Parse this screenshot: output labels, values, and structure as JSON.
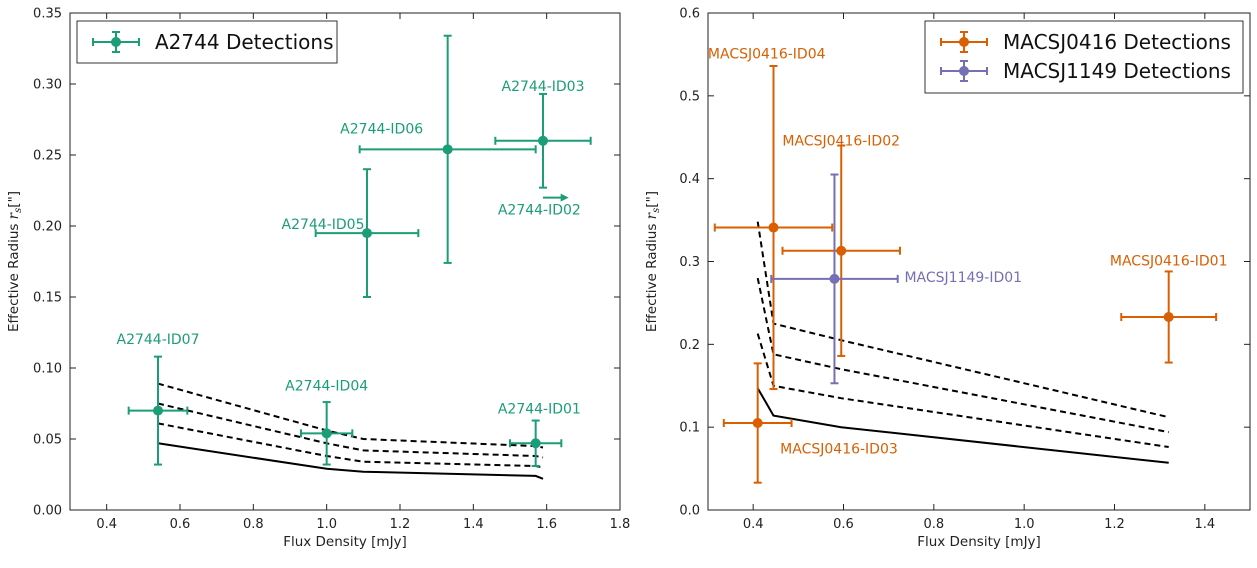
{
  "chart_data": [
    {
      "type": "scatter",
      "xlabel": "Flux Density [mJy]",
      "ylabel": "Effective Radius r_s [\"]",
      "ylabel_main": "Effective Radius ",
      "ylabel_var": "r",
      "ylabel_sub": "s",
      "ylabel_unit": "[\"]",
      "xlim": [
        0.3,
        1.8
      ],
      "ylim": [
        0.0,
        0.35
      ],
      "xticks": [
        0.4,
        0.6,
        0.8,
        1.0,
        1.2,
        1.4,
        1.6,
        1.8
      ],
      "yticks": [
        0.0,
        0.05,
        0.1,
        0.15,
        0.2,
        0.25,
        0.3,
        0.35
      ],
      "xtick_labels": [
        "0.4",
        "0.6",
        "0.8",
        "1.0",
        "1.2",
        "1.4",
        "1.6",
        "1.8"
      ],
      "ytick_labels": [
        "0.00",
        "0.05",
        "0.10",
        "0.15",
        "0.20",
        "0.25",
        "0.30",
        "0.35"
      ],
      "grid": false,
      "legend_position": "top-left",
      "series": [
        {
          "name": "A2744 Detections",
          "color": "#1b9e77",
          "points": [
            {
              "label": "A2744-ID07",
              "x": 0.54,
              "y": 0.07,
              "xerr": [
                0.08,
                0.08
              ],
              "yerr": [
                0.038,
                0.038
              ],
              "label_x": 0.54,
              "label_y": 0.117,
              "anchor": "middle"
            },
            {
              "label": "A2744-ID04",
              "x": 1.0,
              "y": 0.054,
              "xerr": [
                0.07,
                0.07
              ],
              "yerr": [
                0.022,
                0.022
              ],
              "label_x": 1.0,
              "label_y": 0.084,
              "anchor": "middle"
            },
            {
              "label": "A2744-ID05",
              "x": 1.11,
              "y": 0.195,
              "xerr": [
                0.14,
                0.14
              ],
              "yerr": [
                0.045,
                0.045
              ],
              "label_x": 0.99,
              "label_y": 0.198,
              "anchor": "middle"
            },
            {
              "label": "A2744-ID06",
              "x": 1.33,
              "y": 0.254,
              "xerr": [
                0.24,
                0.24
              ],
              "yerr": [
                0.08,
                0.08
              ],
              "label_x": 1.15,
              "label_y": 0.265,
              "anchor": "middle"
            },
            {
              "label": "A2744-ID03",
              "x": 1.59,
              "y": 0.26,
              "xerr": [
                0.13,
                0.13
              ],
              "yerr": [
                0.033,
                0.033
              ],
              "label_x": 1.59,
              "label_y": 0.295,
              "anchor": "middle"
            },
            {
              "label": "A2744-ID01",
              "x": 1.57,
              "y": 0.047,
              "xerr": [
                0.07,
                0.07
              ],
              "yerr": [
                0.016,
                0.016
              ],
              "label_x": 1.58,
              "label_y": 0.068,
              "anchor": "middle"
            }
          ],
          "arrows": [
            {
              "label": "A2744-ID02",
              "x": 1.59,
              "y": 0.22,
              "dx": 0.07,
              "label_x": 1.58,
              "label_y": 0.208,
              "anchor": "middle"
            }
          ]
        }
      ],
      "lines": [
        {
          "style": "solid",
          "x": [
            0.54,
            1.0,
            1.1,
            1.57,
            1.59
          ],
          "y": [
            0.047,
            0.029,
            0.027,
            0.024,
            0.022
          ]
        },
        {
          "style": "dashed",
          "x": [
            0.54,
            1.0,
            1.1,
            1.57,
            1.59
          ],
          "y": [
            0.061,
            0.038,
            0.034,
            0.031,
            0.03
          ]
        },
        {
          "style": "dashed",
          "x": [
            0.54,
            1.0,
            1.1,
            1.57,
            1.59
          ],
          "y": [
            0.075,
            0.047,
            0.042,
            0.038,
            0.037
          ]
        },
        {
          "style": "dashed",
          "x": [
            0.54,
            1.0,
            1.1,
            1.57,
            1.59
          ],
          "y": [
            0.089,
            0.056,
            0.05,
            0.045,
            0.044
          ]
        }
      ]
    },
    {
      "type": "scatter",
      "xlabel": "Flux Density [mJy]",
      "ylabel": "Effective Radius r_s [\"]",
      "ylabel_main": "Effective Radius ",
      "ylabel_var": "r",
      "ylabel_sub": "s",
      "ylabel_unit": "[\"]",
      "xlim": [
        0.3,
        1.5
      ],
      "ylim": [
        0.0,
        0.6
      ],
      "xticks": [
        0.4,
        0.6,
        0.8,
        1.0,
        1.2,
        1.4
      ],
      "yticks": [
        0.0,
        0.1,
        0.2,
        0.3,
        0.4,
        0.5,
        0.6
      ],
      "xtick_labels": [
        "0.4",
        "0.6",
        "0.8",
        "1.0",
        "1.2",
        "1.4"
      ],
      "ytick_labels": [
        "0.0",
        "0.1",
        "0.2",
        "0.3",
        "0.4",
        "0.5",
        "0.6"
      ],
      "grid": false,
      "legend_position": "top-right",
      "series": [
        {
          "name": "MACSJ0416 Detections",
          "color": "#d95f02",
          "points": [
            {
              "label": "MACSJ0416-ID04",
              "x": 0.445,
              "y": 0.341,
              "xerr": [
                0.13,
                0.13
              ],
              "yerr": [
                0.195,
                0.195
              ],
              "label_x": 0.43,
              "label_y": 0.545,
              "anchor": "middle"
            },
            {
              "label": "MACSJ0416-ID02",
              "x": 0.595,
              "y": 0.313,
              "xerr": [
                0.13,
                0.13
              ],
              "yerr": [
                0.127,
                0.127
              ],
              "label_x": 0.595,
              "label_y": 0.44,
              "anchor": "middle"
            },
            {
              "label": "MACSJ0416-ID03",
              "x": 0.41,
              "y": 0.105,
              "xerr": [
                0.075,
                0.075
              ],
              "yerr": [
                0.072,
                0.072
              ],
              "label_x": 0.59,
              "label_y": 0.068,
              "anchor": "middle"
            },
            {
              "label": "MACSJ0416-ID01",
              "x": 1.32,
              "y": 0.233,
              "xerr": [
                0.105,
                0.105
              ],
              "yerr": [
                0.055,
                0.055
              ],
              "label_x": 1.32,
              "label_y": 0.295,
              "anchor": "middle"
            }
          ]
        },
        {
          "name": "MACSJ1149 Detections",
          "color": "#7570b3",
          "points": [
            {
              "label": "MACSJ1149-ID01",
              "x": 0.58,
              "y": 0.279,
              "xerr": [
                0.14,
                0.14
              ],
              "yerr": [
                0.126,
                0.126
              ],
              "label_x": 0.735,
              "label_y": 0.275,
              "anchor": "start"
            }
          ]
        }
      ],
      "lines": [
        {
          "style": "solid",
          "x": [
            0.41,
            0.445,
            0.595,
            1.32
          ],
          "y": [
            0.147,
            0.114,
            0.1,
            0.057
          ]
        },
        {
          "style": "dashed",
          "x": [
            0.41,
            0.445,
            0.595,
            1.32
          ],
          "y": [
            0.213,
            0.15,
            0.135,
            0.076
          ]
        },
        {
          "style": "dashed",
          "x": [
            0.41,
            0.445,
            0.595,
            1.32
          ],
          "y": [
            0.28,
            0.188,
            0.17,
            0.094
          ]
        },
        {
          "style": "dashed",
          "x": [
            0.41,
            0.445,
            0.595,
            1.32
          ],
          "y": [
            0.348,
            0.225,
            0.205,
            0.112
          ]
        }
      ]
    }
  ]
}
